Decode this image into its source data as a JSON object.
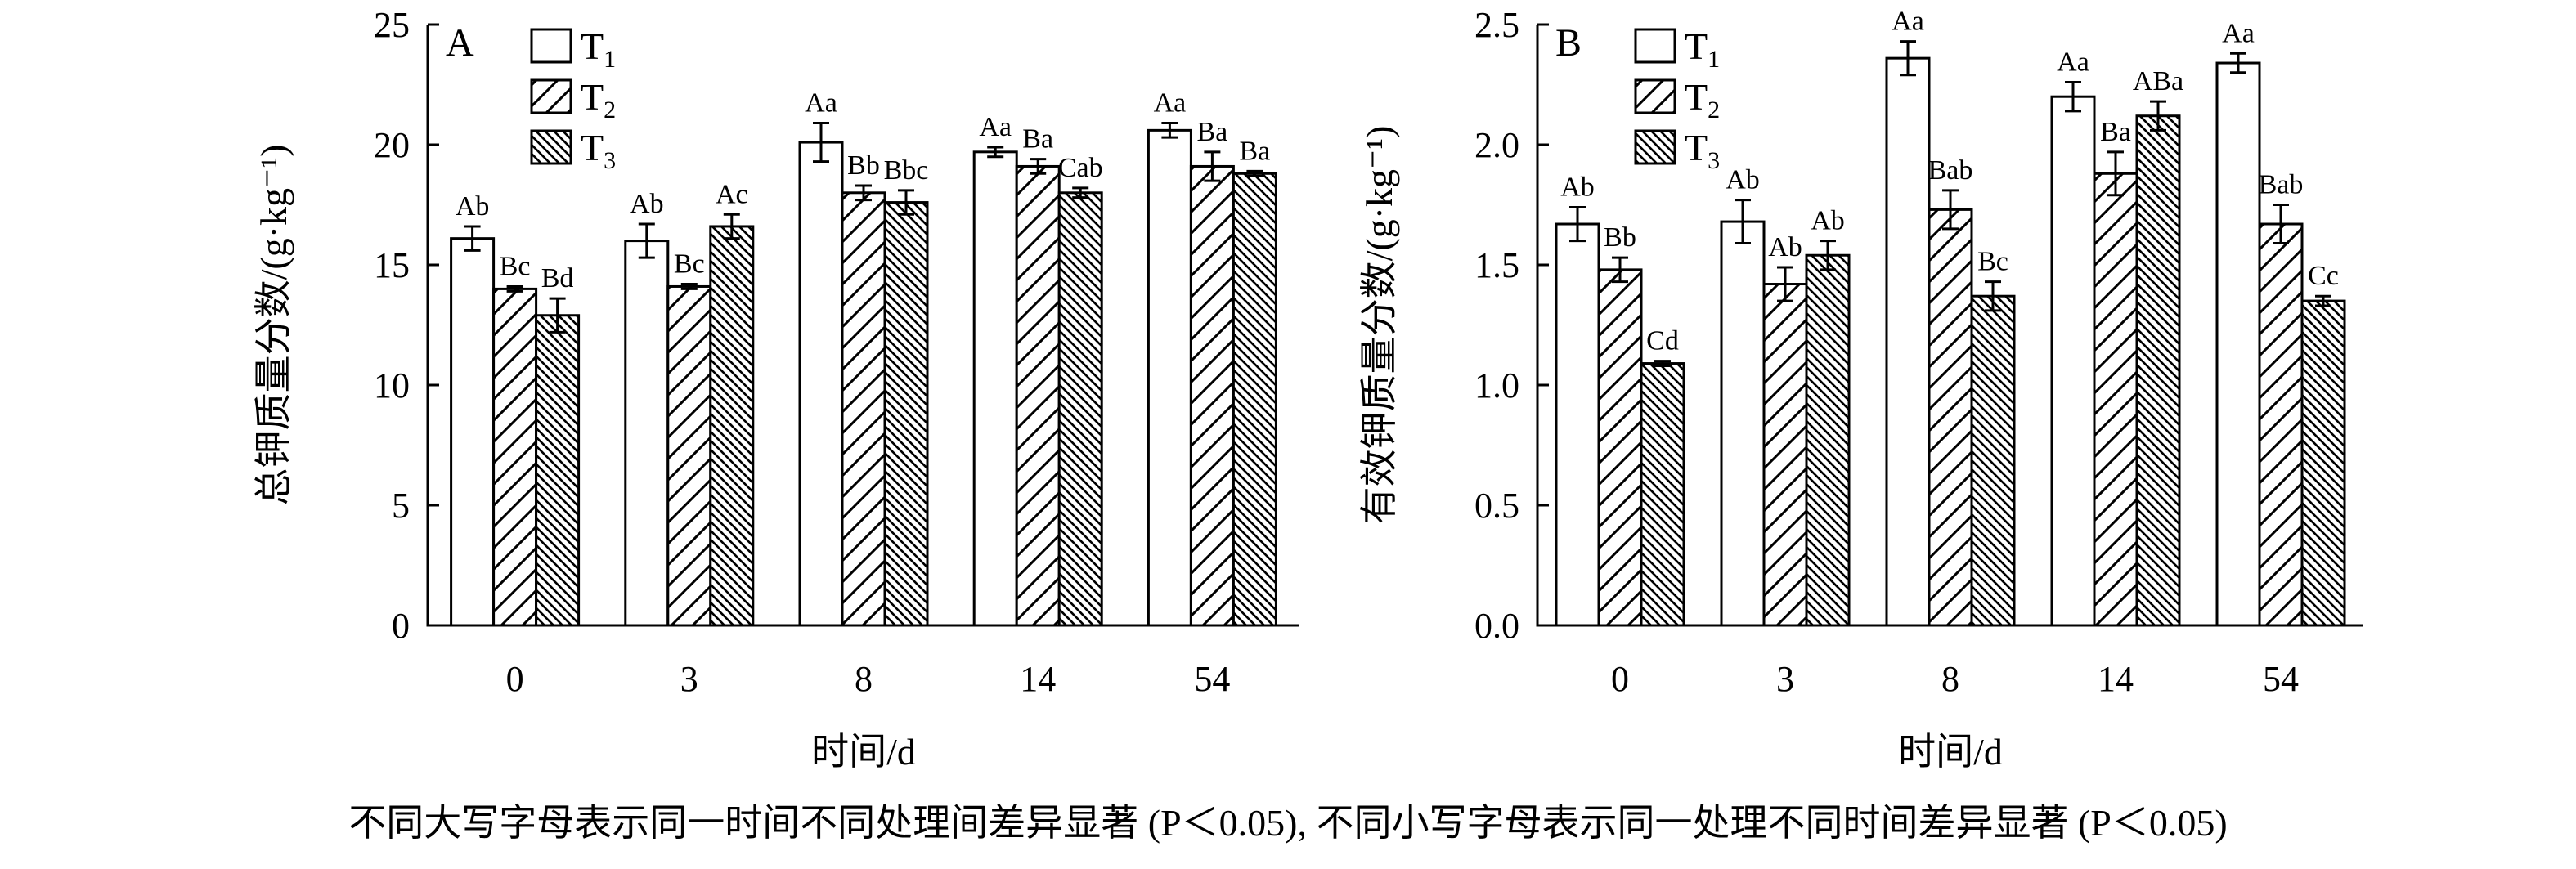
{
  "legend": {
    "entries": [
      {
        "base": "T",
        "sub": "1",
        "pattern": "open"
      },
      {
        "base": "T",
        "sub": "2",
        "pattern": "sparse"
      },
      {
        "base": "T",
        "sub": "3",
        "pattern": "dense"
      }
    ]
  },
  "caption": "不同大写字母表示同一时间不同处理间差异显著 (P＜0.05), 不同小写字母表示同一处理不同时间差异显著 (P＜0.05)",
  "chart_data": [
    {
      "type": "bar",
      "panel": "A",
      "xlabel": "时间/d",
      "ylabel": "总钾质量分数/(g·kg⁻¹)",
      "ylim": [
        0,
        25
      ],
      "yticks": [
        "0",
        "5",
        "10",
        "15",
        "20",
        "25"
      ],
      "categories": [
        "0",
        "3",
        "8",
        "14",
        "54"
      ],
      "series": [
        {
          "name": "T1",
          "values": [
            16.1,
            16.0,
            20.1,
            19.7,
            20.6
          ],
          "errors": [
            0.5,
            0.7,
            0.8,
            0.2,
            0.3
          ],
          "labels": [
            "Ab",
            "Ab",
            "Aa",
            "Aa",
            "Aa"
          ]
        },
        {
          "name": "T2",
          "values": [
            14.0,
            14.1,
            18.0,
            19.1,
            19.1
          ],
          "errors": [
            0.1,
            0.1,
            0.3,
            0.3,
            0.6
          ],
          "labels": [
            "Bc",
            "Bc",
            "Bb",
            "Ba",
            "Ba"
          ]
        },
        {
          "name": "T3",
          "values": [
            12.9,
            16.6,
            17.6,
            18.0,
            18.8
          ],
          "errors": [
            0.7,
            0.5,
            0.5,
            0.2,
            0.1
          ],
          "labels": [
            "Bd",
            "Ac",
            "Bbc",
            "Cab",
            "Ba"
          ]
        }
      ],
      "grid": false,
      "legend_position": "top-left"
    },
    {
      "type": "bar",
      "panel": "B",
      "xlabel": "时间/d",
      "ylabel": "有效钾质量分数/(g·kg⁻¹)",
      "ylim": [
        0,
        2.5
      ],
      "yticks": [
        "0.0",
        "0.5",
        "1.0",
        "1.5",
        "2.0",
        "2.5"
      ],
      "categories": [
        "0",
        "3",
        "8",
        "14",
        "54"
      ],
      "series": [
        {
          "name": "T1",
          "values": [
            1.67,
            1.68,
            2.36,
            2.2,
            2.34
          ],
          "errors": [
            0.07,
            0.09,
            0.07,
            0.06,
            0.04
          ],
          "labels": [
            "Ab",
            "Ab",
            "Aa",
            "Aa",
            "Aa"
          ]
        },
        {
          "name": "T2",
          "values": [
            1.48,
            1.42,
            1.73,
            1.88,
            1.67
          ],
          "errors": [
            0.05,
            0.07,
            0.08,
            0.09,
            0.08
          ],
          "labels": [
            "Bb",
            "Ab",
            "Bab",
            "Ba",
            "Bab"
          ]
        },
        {
          "name": "T3",
          "values": [
            1.09,
            1.54,
            1.37,
            2.12,
            1.35
          ],
          "errors": [
            0.01,
            0.06,
            0.06,
            0.06,
            0.02
          ],
          "labels": [
            "Cd",
            "Ab",
            "Bc",
            "ABa",
            "Cc"
          ]
        }
      ],
      "grid": false,
      "legend_position": "top-left"
    }
  ]
}
